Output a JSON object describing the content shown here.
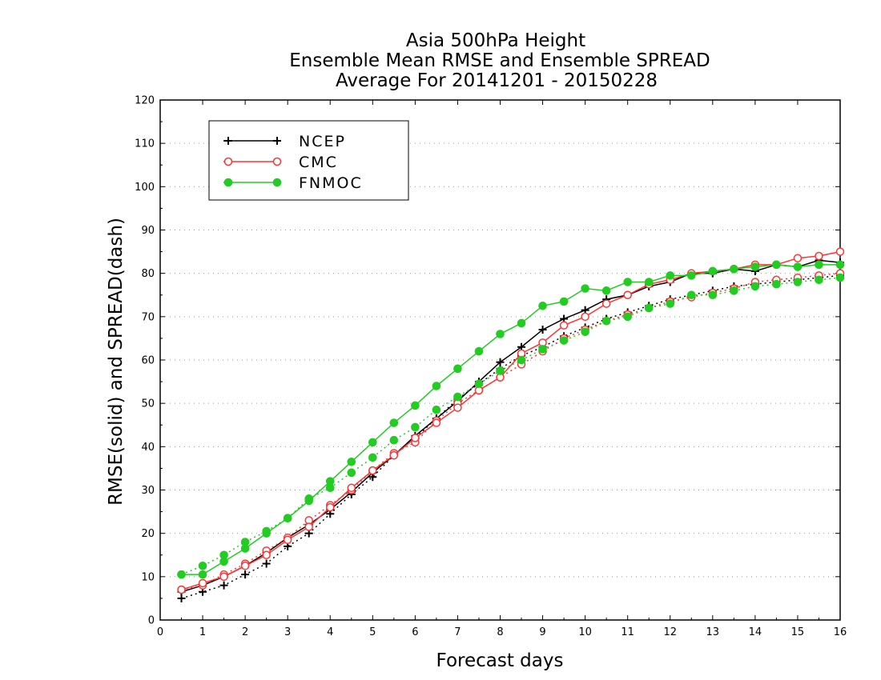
{
  "chart_data": {
    "type": "line",
    "title": [
      "Asia 500hPa Height",
      "Ensemble Mean RMSE and Ensemble SPREAD",
      "Average For 20141201 - 20150228"
    ],
    "xlabel": "Forecast days",
    "ylabel": "RMSE(solid) and SPREAD(dash)",
    "xlim": [
      0,
      16
    ],
    "ylim": [
      0,
      120
    ],
    "xticks": [
      "0",
      "1",
      "2",
      "3",
      "4",
      "5",
      "6",
      "7",
      "8",
      "9",
      "10",
      "11",
      "12",
      "13",
      "14",
      "15",
      "16"
    ],
    "yticks": [
      "0",
      "10",
      "20",
      "30",
      "40",
      "50",
      "60",
      "70",
      "80",
      "90",
      "100",
      "110",
      "120"
    ],
    "grid": "horizontal dotted",
    "legend_position": "top-left",
    "x": [
      0.5,
      1,
      1.5,
      2,
      2.5,
      3,
      3.5,
      4,
      4.5,
      5,
      5.5,
      6,
      6.5,
      7,
      7.5,
      8,
      8.5,
      9,
      9.5,
      10,
      10.5,
      11,
      11.5,
      12,
      12.5,
      13,
      13.5,
      14,
      14.5,
      15,
      15.5,
      16
    ],
    "series": [
      {
        "name": "NCEP",
        "color": "#000000",
        "marker": "plus",
        "rmse": [
          6.5,
          8,
          10,
          12.5,
          15.5,
          19,
          22,
          25.5,
          29.5,
          34,
          38,
          42.5,
          46.5,
          50.5,
          55,
          59.5,
          63,
          67,
          69.5,
          71.5,
          74,
          75,
          77,
          78,
          80,
          80,
          81,
          80.5,
          82,
          81.5,
          83,
          82.5
        ],
        "spread": [
          5,
          6.5,
          8,
          10.5,
          13,
          17,
          20,
          24.5,
          29,
          33,
          38,
          42,
          46.5,
          51,
          54.5,
          58,
          61,
          63,
          65.5,
          67.5,
          69.5,
          71,
          72.5,
          74,
          75,
          76,
          77,
          77.5,
          78,
          78.5,
          79,
          79.5
        ]
      },
      {
        "name": "CMC",
        "color": "#ff3333",
        "marker": "open-circle",
        "rmse": [
          7,
          8.5,
          10,
          12.5,
          15,
          18.5,
          21.5,
          26,
          30.5,
          34.5,
          38,
          42,
          45.5,
          49,
          53,
          56,
          61.5,
          64,
          68,
          70,
          73,
          75,
          77.5,
          78.5,
          80,
          80.5,
          81,
          82,
          82,
          83.5,
          84,
          85
        ],
        "spread": [
          7,
          8,
          10.5,
          13,
          16,
          19,
          23,
          26.5,
          30,
          34.5,
          38.5,
          41,
          46,
          50,
          53,
          56,
          59,
          62,
          65,
          67,
          69,
          70.5,
          72,
          73.5,
          74.5,
          75.5,
          76.5,
          78,
          78.5,
          79,
          79.5,
          80
        ]
      },
      {
        "name": "FNMOC",
        "color": "#22cc22",
        "marker": "filled-circle",
        "rmse": [
          10.5,
          10.5,
          13.5,
          16.5,
          20,
          23.5,
          27.5,
          32,
          36.5,
          41,
          45.5,
          49.5,
          54,
          58,
          62,
          66,
          68.5,
          72.5,
          73.5,
          76.5,
          76,
          78,
          78,
          79.5,
          79.5,
          80.5,
          81,
          81.5,
          82,
          81.5,
          82,
          82
        ],
        "spread": [
          10.5,
          12.5,
          15,
          18,
          20.5,
          23.5,
          28,
          30.5,
          34,
          37.5,
          41.5,
          44.5,
          48.5,
          51.5,
          54.5,
          57.5,
          60,
          62.5,
          64.5,
          66.5,
          69,
          70,
          72,
          73,
          75,
          75,
          76,
          77,
          77.5,
          78,
          78.5,
          79
        ]
      }
    ]
  }
}
